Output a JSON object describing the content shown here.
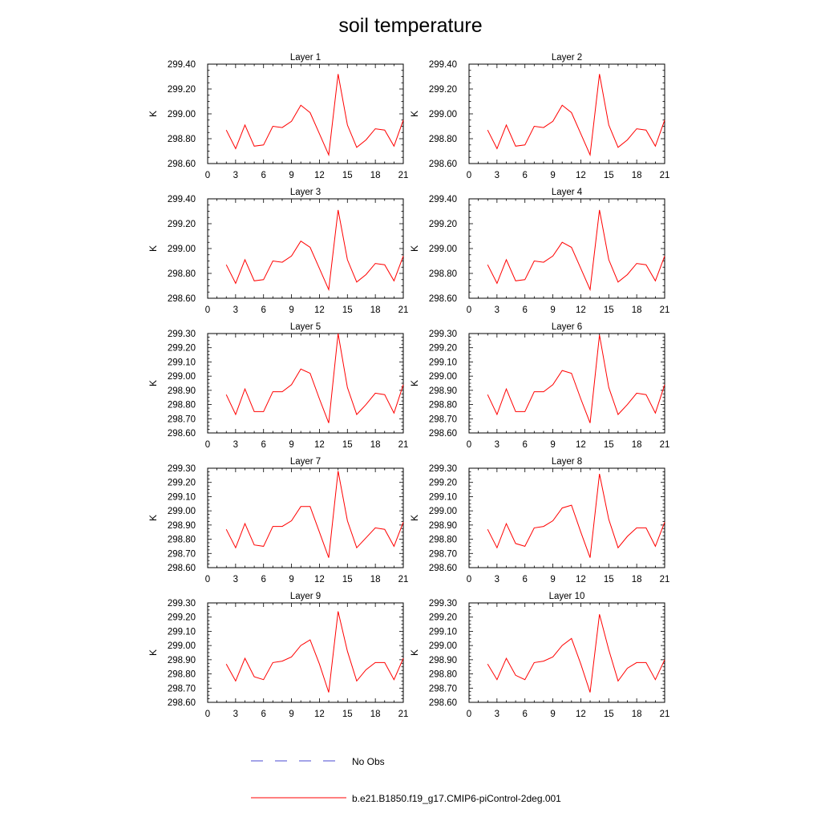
{
  "chart_title": "soil temperature",
  "colors": {
    "model": "#ff0000",
    "obs": "#4a4ad0",
    "axis": "#000000"
  },
  "legend": {
    "obs_label": "No Obs",
    "model_label": "b.e21.B1850.f19_g17.CMIP6-piControl-2deg.001"
  },
  "chart_data": [
    {
      "type": "line",
      "title": "Layer 1",
      "ylabel": "K",
      "xlim": [
        0,
        21
      ],
      "xticks": [
        "0",
        "3",
        "6",
        "9",
        "12",
        "15",
        "18",
        "21"
      ],
      "ylim": [
        298.6,
        299.4
      ],
      "yticks": [
        "298.60",
        "298.80",
        "299.00",
        "299.20",
        "299.40"
      ],
      "series": [
        {
          "x": [
            2,
            3,
            4,
            5,
            6,
            7,
            8,
            9,
            10,
            11,
            12,
            13,
            14,
            15,
            16,
            17,
            18,
            19,
            20,
            21
          ],
          "values": [
            298.87,
            298.72,
            298.91,
            298.74,
            298.75,
            298.9,
            298.89,
            298.94,
            299.07,
            299.01,
            298.84,
            298.67,
            299.32,
            298.91,
            298.73,
            298.79,
            298.88,
            298.87,
            298.74,
            298.95
          ]
        }
      ]
    },
    {
      "type": "line",
      "title": "Layer 2",
      "ylabel": "K",
      "xlim": [
        0,
        21
      ],
      "xticks": [
        "0",
        "3",
        "6",
        "9",
        "12",
        "15",
        "18",
        "21"
      ],
      "ylim": [
        298.6,
        299.4
      ],
      "yticks": [
        "298.60",
        "298.80",
        "299.00",
        "299.20",
        "299.40"
      ],
      "series": [
        {
          "x": [
            2,
            3,
            4,
            5,
            6,
            7,
            8,
            9,
            10,
            11,
            12,
            13,
            14,
            15,
            16,
            17,
            18,
            19,
            20,
            21
          ],
          "values": [
            298.87,
            298.72,
            298.91,
            298.74,
            298.75,
            298.9,
            298.89,
            298.94,
            299.07,
            299.01,
            298.84,
            298.67,
            299.32,
            298.91,
            298.73,
            298.79,
            298.88,
            298.87,
            298.74,
            298.95
          ]
        }
      ]
    },
    {
      "type": "line",
      "title": "Layer 3",
      "ylabel": "K",
      "xlim": [
        0,
        21
      ],
      "xticks": [
        "0",
        "3",
        "6",
        "9",
        "12",
        "15",
        "18",
        "21"
      ],
      "ylim": [
        298.6,
        299.4
      ],
      "yticks": [
        "298.60",
        "298.80",
        "299.00",
        "299.20",
        "299.40"
      ],
      "series": [
        {
          "x": [
            2,
            3,
            4,
            5,
            6,
            7,
            8,
            9,
            10,
            11,
            12,
            13,
            14,
            15,
            16,
            17,
            18,
            19,
            20,
            21
          ],
          "values": [
            298.87,
            298.72,
            298.91,
            298.74,
            298.75,
            298.9,
            298.89,
            298.94,
            299.06,
            299.01,
            298.84,
            298.67,
            299.31,
            298.91,
            298.73,
            298.79,
            298.88,
            298.87,
            298.74,
            298.94
          ]
        }
      ]
    },
    {
      "type": "line",
      "title": "Layer 4",
      "ylabel": "K",
      "xlim": [
        0,
        21
      ],
      "xticks": [
        "0",
        "3",
        "6",
        "9",
        "12",
        "15",
        "18",
        "21"
      ],
      "ylim": [
        298.6,
        299.4
      ],
      "yticks": [
        "298.60",
        "298.80",
        "299.00",
        "299.20",
        "299.40"
      ],
      "series": [
        {
          "x": [
            2,
            3,
            4,
            5,
            6,
            7,
            8,
            9,
            10,
            11,
            12,
            13,
            14,
            15,
            16,
            17,
            18,
            19,
            20,
            21
          ],
          "values": [
            298.87,
            298.72,
            298.91,
            298.74,
            298.75,
            298.9,
            298.89,
            298.94,
            299.05,
            299.01,
            298.84,
            298.67,
            299.31,
            298.91,
            298.73,
            298.79,
            298.88,
            298.87,
            298.74,
            298.94
          ]
        }
      ]
    },
    {
      "type": "line",
      "title": "Layer 5",
      "ylabel": "K",
      "xlim": [
        0,
        21
      ],
      "xticks": [
        "0",
        "3",
        "6",
        "9",
        "12",
        "15",
        "18",
        "21"
      ],
      "ylim": [
        298.6,
        299.3
      ],
      "yticks": [
        "298.60",
        "298.70",
        "298.80",
        "298.90",
        "299.00",
        "299.10",
        "299.20",
        "299.30"
      ],
      "series": [
        {
          "x": [
            2,
            3,
            4,
            5,
            6,
            7,
            8,
            9,
            10,
            11,
            12,
            13,
            14,
            15,
            16,
            17,
            18,
            19,
            20,
            21
          ],
          "values": [
            298.87,
            298.73,
            298.91,
            298.75,
            298.75,
            298.89,
            298.89,
            298.94,
            299.05,
            299.02,
            298.84,
            298.67,
            299.3,
            298.92,
            298.73,
            298.8,
            298.88,
            298.87,
            298.74,
            298.94
          ]
        }
      ]
    },
    {
      "type": "line",
      "title": "Layer 6",
      "ylabel": "K",
      "xlim": [
        0,
        21
      ],
      "xticks": [
        "0",
        "3",
        "6",
        "9",
        "12",
        "15",
        "18",
        "21"
      ],
      "ylim": [
        298.6,
        299.3
      ],
      "yticks": [
        "298.60",
        "298.70",
        "298.80",
        "298.90",
        "299.00",
        "299.10",
        "299.20",
        "299.30"
      ],
      "series": [
        {
          "x": [
            2,
            3,
            4,
            5,
            6,
            7,
            8,
            9,
            10,
            11,
            12,
            13,
            14,
            15,
            16,
            17,
            18,
            19,
            20,
            21
          ],
          "values": [
            298.87,
            298.73,
            298.91,
            298.75,
            298.75,
            298.89,
            298.89,
            298.94,
            299.04,
            299.02,
            298.84,
            298.67,
            299.29,
            298.92,
            298.73,
            298.8,
            298.88,
            298.87,
            298.74,
            298.94
          ]
        }
      ]
    },
    {
      "type": "line",
      "title": "Layer 7",
      "ylabel": "K",
      "xlim": [
        0,
        21
      ],
      "xticks": [
        "0",
        "3",
        "6",
        "9",
        "12",
        "15",
        "18",
        "21"
      ],
      "ylim": [
        298.6,
        299.3
      ],
      "yticks": [
        "298.60",
        "298.70",
        "298.80",
        "298.90",
        "299.00",
        "299.10",
        "299.20",
        "299.30"
      ],
      "series": [
        {
          "x": [
            2,
            3,
            4,
            5,
            6,
            7,
            8,
            9,
            10,
            11,
            12,
            13,
            14,
            15,
            16,
            17,
            18,
            19,
            20,
            21
          ],
          "values": [
            298.87,
            298.74,
            298.91,
            298.76,
            298.75,
            298.89,
            298.89,
            298.93,
            299.03,
            299.03,
            298.85,
            298.67,
            299.28,
            298.93,
            298.74,
            298.81,
            298.88,
            298.87,
            298.75,
            298.92
          ]
        }
      ]
    },
    {
      "type": "line",
      "title": "Layer 8",
      "ylabel": "K",
      "xlim": [
        0,
        21
      ],
      "xticks": [
        "0",
        "3",
        "6",
        "9",
        "12",
        "15",
        "18",
        "21"
      ],
      "ylim": [
        298.6,
        299.3
      ],
      "yticks": [
        "298.60",
        "298.70",
        "298.80",
        "298.90",
        "299.00",
        "299.10",
        "299.20",
        "299.30"
      ],
      "series": [
        {
          "x": [
            2,
            3,
            4,
            5,
            6,
            7,
            8,
            9,
            10,
            11,
            12,
            13,
            14,
            15,
            16,
            17,
            18,
            19,
            20,
            21
          ],
          "values": [
            298.87,
            298.74,
            298.91,
            298.77,
            298.75,
            298.88,
            298.89,
            298.93,
            299.02,
            299.04,
            298.85,
            298.67,
            299.26,
            298.94,
            298.74,
            298.82,
            298.88,
            298.88,
            298.75,
            298.92
          ]
        }
      ]
    },
    {
      "type": "line",
      "title": "Layer 9",
      "ylabel": "K",
      "xlim": [
        0,
        21
      ],
      "xticks": [
        "0",
        "3",
        "6",
        "9",
        "12",
        "15",
        "18",
        "21"
      ],
      "ylim": [
        298.6,
        299.3
      ],
      "yticks": [
        "298.60",
        "298.70",
        "298.80",
        "298.90",
        "299.00",
        "299.10",
        "299.20",
        "299.30"
      ],
      "series": [
        {
          "x": [
            2,
            3,
            4,
            5,
            6,
            7,
            8,
            9,
            10,
            11,
            12,
            13,
            14,
            15,
            16,
            17,
            18,
            19,
            20,
            21
          ],
          "values": [
            298.87,
            298.75,
            298.91,
            298.78,
            298.76,
            298.88,
            298.89,
            298.92,
            299.0,
            299.04,
            298.87,
            298.67,
            299.24,
            298.96,
            298.75,
            298.83,
            298.88,
            298.88,
            298.76,
            298.91
          ]
        }
      ]
    },
    {
      "type": "line",
      "title": "Layer 10",
      "ylabel": "K",
      "xlim": [
        0,
        21
      ],
      "xticks": [
        "0",
        "3",
        "6",
        "9",
        "12",
        "15",
        "18",
        "21"
      ],
      "ylim": [
        298.6,
        299.3
      ],
      "yticks": [
        "298.60",
        "298.70",
        "298.80",
        "298.90",
        "299.00",
        "299.10",
        "299.20",
        "299.30"
      ],
      "series": [
        {
          "x": [
            2,
            3,
            4,
            5,
            6,
            7,
            8,
            9,
            10,
            11,
            12,
            13,
            14,
            15,
            16,
            17,
            18,
            19,
            20,
            21
          ],
          "values": [
            298.87,
            298.76,
            298.91,
            298.79,
            298.76,
            298.88,
            298.89,
            298.92,
            299.0,
            299.05,
            298.87,
            298.67,
            299.22,
            298.97,
            298.75,
            298.84,
            298.88,
            298.88,
            298.76,
            298.9
          ]
        }
      ]
    }
  ]
}
